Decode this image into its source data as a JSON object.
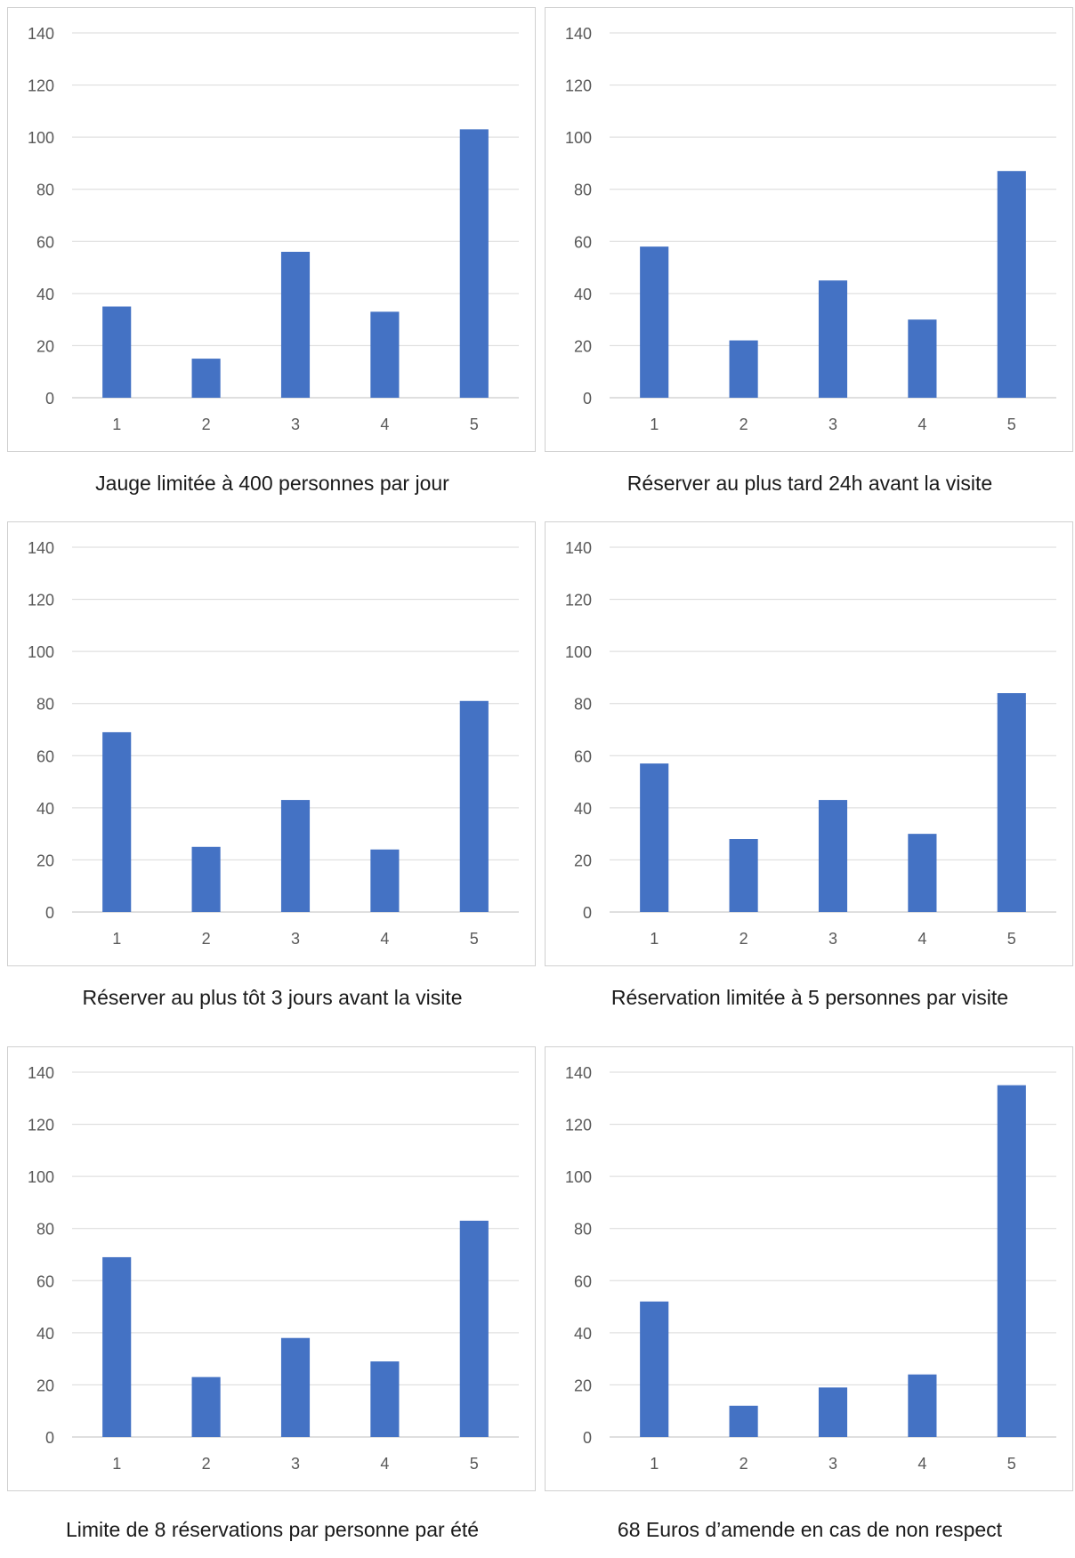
{
  "chart_data": [
    {
      "type": "bar",
      "title": "Jauge limitée à 400 personnes par jour",
      "categories": [
        "1",
        "2",
        "3",
        "4",
        "5"
      ],
      "series": [
        {
          "values": [
            35,
            15,
            56,
            33,
            103
          ]
        }
      ],
      "ylim": [
        0,
        140
      ],
      "yticks": [
        0,
        20,
        40,
        60,
        80,
        100,
        120,
        140
      ],
      "grid": true,
      "color": "#4472c4"
    },
    {
      "type": "bar",
      "title": "Réserver au plus tard 24h avant la visite",
      "categories": [
        "1",
        "2",
        "3",
        "4",
        "5"
      ],
      "series": [
        {
          "values": [
            58,
            22,
            45,
            30,
            87
          ]
        }
      ],
      "ylim": [
        0,
        140
      ],
      "yticks": [
        0,
        20,
        40,
        60,
        80,
        100,
        120,
        140
      ],
      "grid": true,
      "color": "#4472c4"
    },
    {
      "type": "bar",
      "title": "Réserver au plus tôt 3 jours avant la visite",
      "categories": [
        "1",
        "2",
        "3",
        "4",
        "5"
      ],
      "series": [
        {
          "values": [
            69,
            25,
            43,
            24,
            81
          ]
        }
      ],
      "ylim": [
        0,
        140
      ],
      "yticks": [
        0,
        20,
        40,
        60,
        80,
        100,
        120,
        140
      ],
      "grid": true,
      "color": "#4472c4"
    },
    {
      "type": "bar",
      "title": "Réservation limitée à 5 personnes par visite",
      "categories": [
        "1",
        "2",
        "3",
        "4",
        "5"
      ],
      "series": [
        {
          "values": [
            57,
            28,
            43,
            30,
            84
          ]
        }
      ],
      "ylim": [
        0,
        140
      ],
      "yticks": [
        0,
        20,
        40,
        60,
        80,
        100,
        120,
        140
      ],
      "grid": true,
      "color": "#4472c4"
    },
    {
      "type": "bar",
      "title": "Limite de 8 réservations par personne par été",
      "categories": [
        "1",
        "2",
        "3",
        "4",
        "5"
      ],
      "series": [
        {
          "values": [
            69,
            23,
            38,
            29,
            83
          ]
        }
      ],
      "ylim": [
        0,
        140
      ],
      "yticks": [
        0,
        20,
        40,
        60,
        80,
        100,
        120,
        140
      ],
      "grid": true,
      "color": "#4472c4"
    },
    {
      "type": "bar",
      "title": "68 Euros d’amende en cas de non respect",
      "categories": [
        "1",
        "2",
        "3",
        "4",
        "5"
      ],
      "series": [
        {
          "values": [
            52,
            12,
            19,
            24,
            135
          ]
        }
      ],
      "ylim": [
        0,
        140
      ],
      "yticks": [
        0,
        20,
        40,
        60,
        80,
        100,
        120,
        140
      ],
      "grid": true,
      "color": "#4472c4"
    }
  ]
}
